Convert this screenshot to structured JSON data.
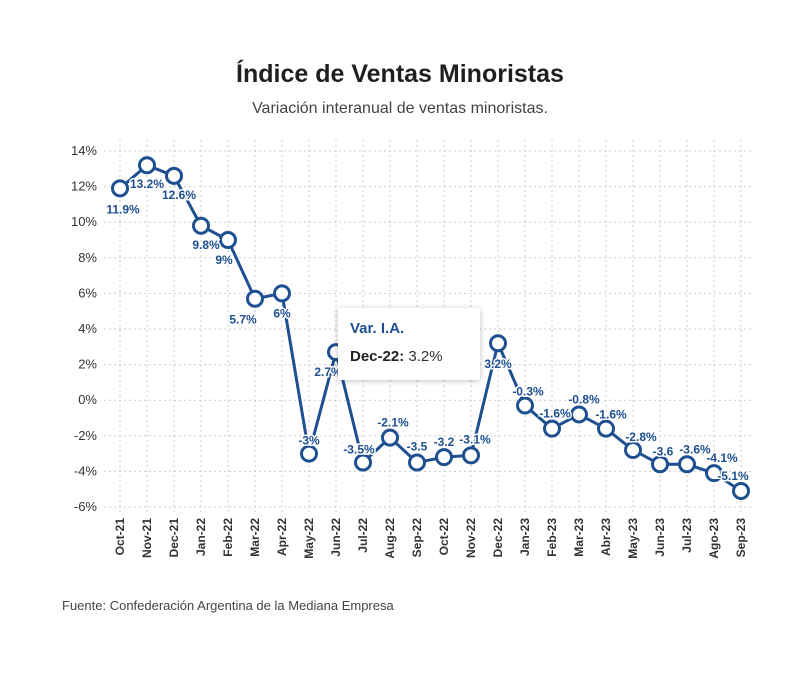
{
  "header": {
    "title": "Índice de Ventas Minoristas",
    "subtitle": "Variación interanual de ventas minoristas."
  },
  "footer": {
    "source": "Fuente: Confederación Argentina de la Mediana Empresa"
  },
  "tooltip": {
    "title": "Var. I.A.",
    "key": "Dec-22:",
    "value": "3.2%"
  },
  "colors": {
    "series": "#1d4f91",
    "grid": "#cccccc"
  },
  "chart_data": {
    "type": "line",
    "title": "Índice de Ventas Minoristas",
    "subtitle": "Variación interanual de ventas minoristas.",
    "xlabel": "",
    "ylabel": "",
    "ylim": [
      -6,
      14
    ],
    "yticks": [
      "14%",
      "12%",
      "10%",
      "8%",
      "6%",
      "4%",
      "2%",
      "0%",
      "-2%",
      "-4%",
      "-6%"
    ],
    "ytick_values": [
      14,
      12,
      10,
      8,
      6,
      4,
      2,
      0,
      -2,
      -4,
      -6
    ],
    "grid": true,
    "categories": [
      "Oct-21",
      "Nov-21",
      "Dec-21",
      "Jan-22",
      "Feb-22",
      "Mar-22",
      "Apr-22",
      "May-22",
      "Jun-22",
      "Jul-22",
      "Aug-22",
      "Sep-22",
      "Oct-22",
      "Nov-22",
      "Dec-22",
      "Jan-23",
      "Feb-23",
      "Mar-23",
      "Abr-23",
      "May-23",
      "Jun-23",
      "Jul-23",
      "Ago-23",
      "Sep-23"
    ],
    "series": [
      {
        "name": "Var. I.A.",
        "values": [
          11.9,
          13.2,
          12.6,
          9.8,
          9,
          5.7,
          6,
          -3,
          2.7,
          -3.5,
          -2.1,
          -3.5,
          -3.2,
          -3.1,
          3.2,
          -0.3,
          -1.6,
          -0.8,
          -1.6,
          -2.8,
          -3.6,
          -3.6,
          -4.1,
          -5.1
        ],
        "labels": [
          "11.9%",
          "13.2%",
          "12.6%",
          "9.8%",
          "9%",
          "5.7%",
          "6%",
          "-3%",
          "2.7%",
          "-3.5%",
          "-2.1%",
          "-3.5",
          "-3.2",
          "-3.1%",
          "3.2%",
          "-0.3%",
          "-1.6%",
          "-0.8%",
          "-1.6%",
          "-2.8%",
          "-3.6",
          "-3.6%",
          "-4.1%",
          "-5.1%"
        ]
      }
    ]
  }
}
